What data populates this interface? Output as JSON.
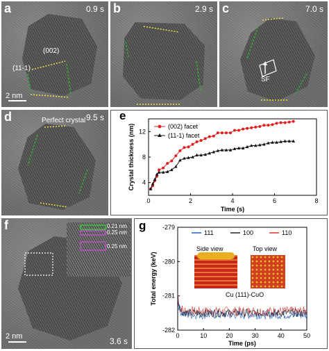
{
  "panels": {
    "a": {
      "label": "a",
      "time": "0.9 s",
      "facet1": "(002)",
      "facet2": "(11-1)",
      "scale": "2 nm"
    },
    "b": {
      "label": "b",
      "time": "2.9 s"
    },
    "c": {
      "label": "c",
      "time": "7.0 s",
      "defect": "SF"
    },
    "d": {
      "label": "d",
      "time": "9.5 s",
      "note": "Perfect crystal"
    },
    "e": {
      "label": "e"
    },
    "f": {
      "label": "f",
      "time": "3.6 s",
      "scale": "2 nm",
      "spacings": [
        "0.21 nm",
        "0.25 nm",
        "0.25 nm"
      ]
    },
    "g": {
      "label": "g",
      "side_view": "Side view",
      "top_view": "Top view",
      "caption": "Cu (111)-CuO"
    }
  },
  "colors": {
    "facet002": "#e02020",
    "facet111": "#111111",
    "s111": "#2060c0",
    "s100": "#222222",
    "s110": "#e03030",
    "tem_green": "#2fae2f",
    "tem_yellow": "#e8e040"
  },
  "chart_data": [
    {
      "type": "line",
      "xlabel": "Time (s)",
      "ylabel": "Crystal thickness (nm)",
      "xlim": [
        0,
        8
      ],
      "ylim": [
        2,
        14
      ],
      "xticks": [
        "0",
        "2",
        "4",
        "6",
        "8"
      ],
      "yticks": [
        "4",
        "8",
        "12"
      ],
      "legend_position": "top-left",
      "series": [
        {
          "name": "(002) facet",
          "marker": "circle",
          "x": [
            0.1,
            0.2,
            0.3,
            0.4,
            0.5,
            0.7,
            0.9,
            1.1,
            1.3,
            1.5,
            1.7,
            1.9,
            2.1,
            2.3,
            2.5,
            2.7,
            2.9,
            3.1,
            3.3,
            3.5,
            3.7,
            3.9,
            4.1,
            4.3,
            4.5,
            4.7,
            4.9,
            5.1,
            5.3,
            5.5,
            5.7,
            5.9,
            6.1,
            6.3,
            6.5,
            6.7,
            6.9
          ],
          "y": [
            3.0,
            3.5,
            4.3,
            5.0,
            6.0,
            6.3,
            7.0,
            7.4,
            8.2,
            9.0,
            9.5,
            9.6,
            10.0,
            10.4,
            10.6,
            10.9,
            11.2,
            11.3,
            11.8,
            11.8,
            11.8,
            11.8,
            12.2,
            12.2,
            12.4,
            12.5,
            12.6,
            12.7,
            12.8,
            13.0,
            13.0,
            13.1,
            13.3,
            13.4,
            13.4,
            13.5,
            13.6
          ]
        },
        {
          "name": "(11-1) facet",
          "marker": "triangle",
          "x": [
            0.1,
            0.2,
            0.3,
            0.4,
            0.5,
            0.7,
            0.9,
            1.1,
            1.3,
            1.5,
            1.7,
            1.9,
            2.1,
            2.3,
            2.5,
            2.7,
            2.9,
            3.1,
            3.3,
            3.5,
            3.7,
            3.9,
            4.1,
            4.3,
            4.5,
            4.7,
            4.9,
            5.1,
            5.3,
            5.5,
            5.7,
            5.9,
            6.1,
            6.3,
            6.5,
            6.7,
            6.9
          ],
          "y": [
            3.0,
            3.8,
            4.5,
            5.3,
            5.6,
            5.6,
            5.7,
            6.0,
            6.5,
            7.5,
            7.8,
            7.9,
            8.0,
            8.3,
            8.3,
            8.4,
            8.6,
            8.8,
            9.0,
            9.1,
            9.1,
            9.1,
            9.3,
            9.4,
            9.4,
            9.6,
            9.8,
            9.8,
            9.9,
            10.0,
            10.2,
            10.3,
            10.3,
            10.4,
            10.5,
            10.5,
            10.5
          ]
        }
      ]
    },
    {
      "type": "line",
      "xlabel": "Time (ps)",
      "ylabel": "Total energy (keV)",
      "xlim": [
        0,
        50
      ],
      "ylim": [
        -282,
        -279
      ],
      "xticks": [
        "0",
        "10",
        "20",
        "30",
        "40",
        "50"
      ],
      "yticks": [
        "-279",
        "-280",
        "-281",
        "-282"
      ],
      "legend_position": "top",
      "series": [
        {
          "name": "111",
          "start": -281.1,
          "mean": -281.55,
          "amp": 0.13
        },
        {
          "name": "100",
          "start": -281.0,
          "mean": -281.5,
          "amp": 0.12
        },
        {
          "name": "110",
          "start": -280.95,
          "mean": -281.45,
          "amp": 0.14
        }
      ]
    }
  ]
}
